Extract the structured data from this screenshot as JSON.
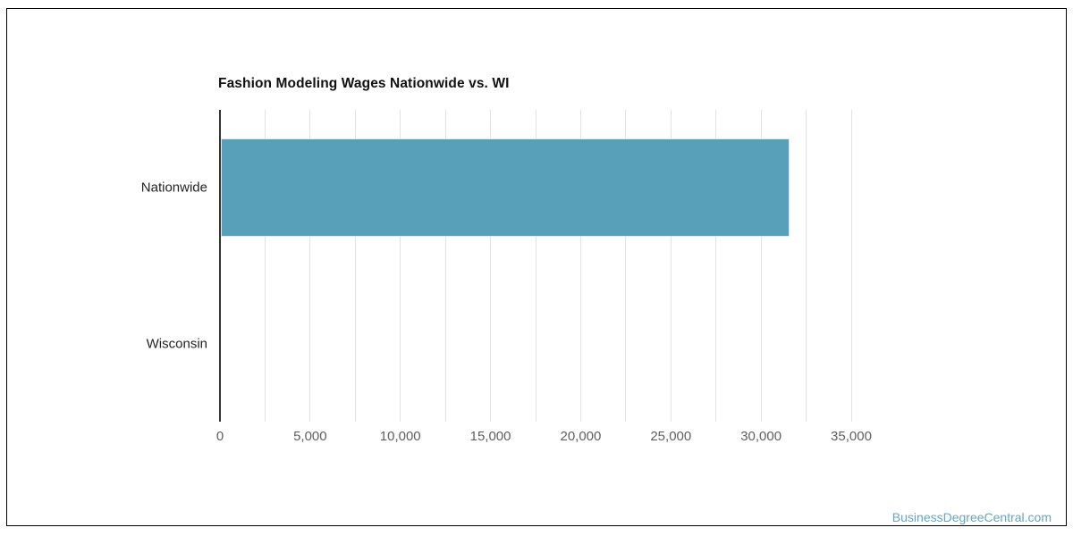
{
  "chart_data": {
    "type": "bar",
    "orientation": "horizontal",
    "title": "Fashion Modeling Wages Nationwide vs. WI",
    "categories": [
      "Nationwide",
      "Wisconsin"
    ],
    "values": [
      31570,
      0
    ],
    "xlabel": "",
    "ylabel": "",
    "xlim": [
      0,
      35000
    ],
    "x_tick_step": 5000,
    "x_minor_grid_step": 2500,
    "x_tick_labels": [
      "0",
      "5,000",
      "10,000",
      "15,000",
      "20,000",
      "25,000",
      "30,000",
      "35,000"
    ],
    "grid": true,
    "legend": false
  },
  "colors": {
    "bar": "#58A0B9",
    "bar_border": "#DCEBF1",
    "gridline": "#E2E2E2",
    "axis_line": "#333333",
    "tick_label": "#5F5F5F",
    "category_label": "#222222",
    "title": "#111111",
    "watermark": "#64A7C2",
    "frame_border": "#000000"
  },
  "watermark": {
    "text": "BusinessDegreeCentral.com"
  }
}
